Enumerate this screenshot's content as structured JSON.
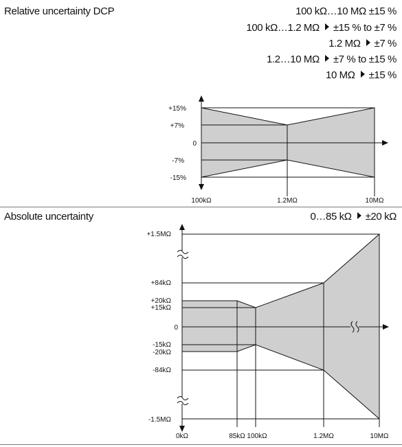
{
  "relative": {
    "title": "Relative uncertainty DCP",
    "summary": "100 kΩ…10 MΩ ±15 %",
    "rows": [
      {
        "range": "100 kΩ…1.2 MΩ",
        "value": "±15 % to ±7 %"
      },
      {
        "range": "1.2 MΩ",
        "value": "±7 %"
      },
      {
        "range": "1.2…10 MΩ",
        "value": "±7 % to ±15 %"
      },
      {
        "range": "10 MΩ",
        "value": "±15 %"
      }
    ],
    "y_ticks": [
      "+15%",
      "+7%",
      "0",
      "-7%",
      "-15%"
    ],
    "x_ticks": [
      "100kΩ",
      "1.2MΩ",
      "10MΩ"
    ]
  },
  "absolute": {
    "title": "Absolute uncertainty",
    "row": {
      "range": "0…85 kΩ",
      "value": "±20 kΩ"
    },
    "y_ticks": [
      "+1.5MΩ",
      "+84kΩ",
      "+20kΩ",
      "+15kΩ",
      "0",
      "-15kΩ",
      "-20kΩ",
      "-84kΩ",
      "-1.5MΩ"
    ],
    "x_ticks": [
      "0kΩ",
      "85kΩ",
      "100kΩ",
      "1.2MΩ",
      "10MΩ"
    ]
  },
  "colors": {
    "fill": "#cfcfcf",
    "line": "#111111",
    "rule": "#7a7a7a"
  }
}
